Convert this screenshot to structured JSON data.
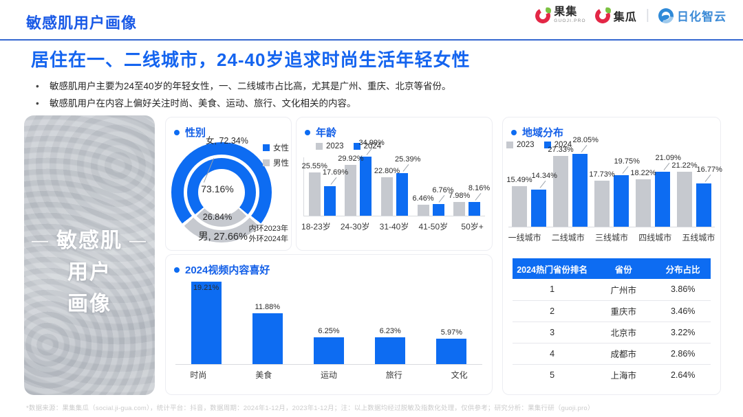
{
  "page": {
    "title": "敏感肌用户画像",
    "subtitle": "居住在一、二线城市，24-40岁追求时尚生活年轻女性",
    "bullets": [
      "敏感肌用户主要为24至40岁的年轻女性，一、二线城市占比高，尤其是广州、重庆、北京等省份。",
      "敏感肌用户在内容上偏好关注时尚、美食、运动、旅行、文化相关的内容。"
    ],
    "footnote": "*数据来源：果集集瓜（social.ji-gua.com），统计平台：抖音，数据周期：2024年1-12月，2023年1-12月；注：以上数据均经过脱敏及指数化处理，仅供参考；研究分析：果集行研（guoji.pro）"
  },
  "logos": {
    "guoji": {
      "name": "果集",
      "sub": "GUOJI.PRO"
    },
    "jigua": {
      "name": "集瓜"
    },
    "separator": "|",
    "rihua": {
      "name": "日化智云"
    }
  },
  "left_panel": {
    "dash": "—",
    "line1": "敏感肌",
    "line2": "用户",
    "line3": "画像"
  },
  "colors": {
    "accent_blue": "#0d6cf2",
    "series_gray": "#c6c9cf",
    "title_blue": "#1460e8",
    "table_header_blue": "#0d6cf2"
  },
  "chart_data": [
    {
      "type": "pie",
      "title": "性别",
      "legend": [
        "女性",
        "男性"
      ],
      "note": [
        "内环2023年",
        "外环2024年"
      ],
      "rings": [
        {
          "year": "2023",
          "position": "inner",
          "female": 73.16,
          "male": 26.84
        },
        {
          "year": "2024",
          "position": "outer",
          "female": 72.34,
          "male": 27.66
        }
      ],
      "labels": {
        "outer_female": "女, 72.34%",
        "outer_male": "男, 27.66%",
        "inner_female": "73.16%",
        "inner_male": "26.84%"
      }
    },
    {
      "type": "bar",
      "title": "年龄",
      "legend": [
        "2023",
        "2024"
      ],
      "categories": [
        "18-23岁",
        "24-30岁",
        "31-40岁",
        "41-50岁",
        "50岁+"
      ],
      "series": [
        {
          "name": "2023",
          "values": [
            25.55,
            29.92,
            22.8,
            6.46,
            7.98
          ]
        },
        {
          "name": "2024",
          "values": [
            17.69,
            34.99,
            25.39,
            6.76,
            8.16
          ]
        }
      ],
      "ylim": [
        0,
        34.99
      ],
      "grid": false,
      "legend_position": "top-left",
      "unit": "%"
    },
    {
      "type": "bar",
      "title": "地域分布",
      "legend": [
        "2023",
        "2024"
      ],
      "categories": [
        "一线城市",
        "二线城市",
        "三线城市",
        "四线城市",
        "五线城市"
      ],
      "series": [
        {
          "name": "2023",
          "values": [
            15.49,
            27.33,
            17.73,
            18.22,
            21.22
          ]
        },
        {
          "name": "2024",
          "values": [
            14.34,
            28.05,
            19.75,
            21.09,
            16.77
          ]
        }
      ],
      "ylim": [
        0,
        28.05
      ],
      "grid": false,
      "legend_position": "top-left",
      "unit": "%"
    },
    {
      "type": "bar",
      "title": "2024视频内容喜好",
      "categories": [
        "时尚",
        "美食",
        "运动",
        "旅行",
        "文化"
      ],
      "series": [
        {
          "name": "2024",
          "values": [
            19.21,
            11.88,
            6.25,
            6.23,
            5.97
          ]
        }
      ],
      "ylim": [
        0,
        19.21
      ],
      "grid": false,
      "unit": "%"
    },
    {
      "type": "table",
      "headers": [
        "2024热门省份排名",
        "省份",
        "分布占比"
      ],
      "rows": [
        [
          "1",
          "广州市",
          "3.86%"
        ],
        [
          "2",
          "重庆市",
          "3.46%"
        ],
        [
          "3",
          "北京市",
          "3.22%"
        ],
        [
          "4",
          "成都市",
          "2.86%"
        ],
        [
          "5",
          "上海市",
          "2.64%"
        ]
      ]
    }
  ]
}
